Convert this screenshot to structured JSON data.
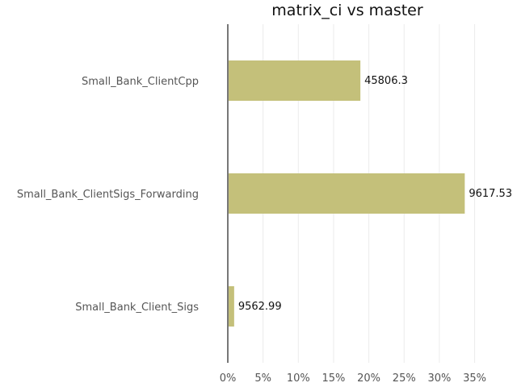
{
  "chart_data": {
    "type": "bar",
    "orientation": "horizontal",
    "title": "matrix_ci vs master",
    "xlabel": "",
    "ylabel": "",
    "categories": [
      "Small_Bank_ClientCpp",
      "Small_Bank_ClientSigs_Forwarding",
      "Small_Bank_Client_Sigs"
    ],
    "values": [
      18.8,
      33.6,
      0.9
    ],
    "data_labels": [
      "45806.3",
      "9617.53",
      "9562.99"
    ],
    "xlim": [
      0,
      40
    ],
    "x_ticks": [
      0,
      5,
      10,
      15,
      20,
      25,
      30,
      35
    ],
    "x_tick_labels": [
      "0%",
      "5%",
      "10%",
      "15%",
      "20%",
      "25%",
      "30%",
      "35%"
    ],
    "grid": "vertical",
    "legend": "none",
    "colors": {
      "bar": "#c4c07a",
      "axis": "#777777",
      "grid": "#ececec"
    }
  }
}
